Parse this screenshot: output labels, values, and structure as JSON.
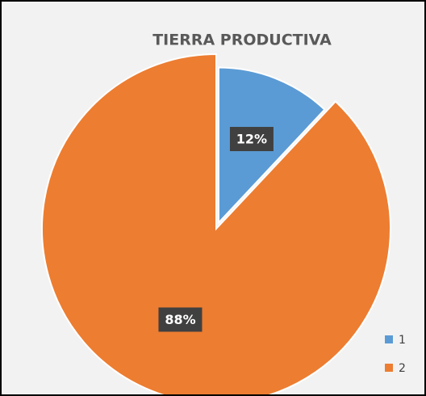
{
  "chart_data": {
    "type": "pie",
    "title": "TIERRA PRODUCTIVA",
    "categories": [
      "1",
      "2"
    ],
    "values": [
      12,
      88
    ],
    "value_labels": [
      "12%",
      "88%"
    ],
    "colors": [
      "#5b9bd5",
      "#ed7d31"
    ],
    "legend": "bottom-right"
  }
}
